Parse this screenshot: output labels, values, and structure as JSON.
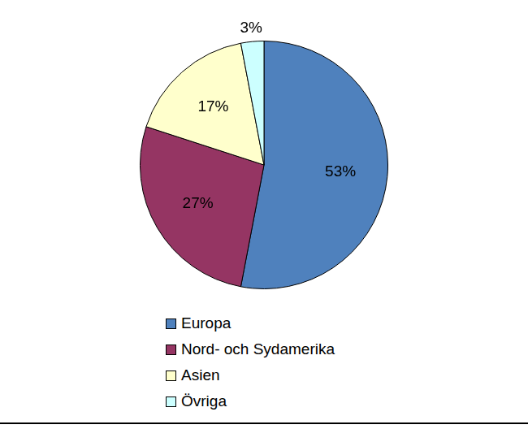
{
  "chart_data": {
    "type": "pie",
    "categories": [
      "Europa",
      "Nord- och Sydamerika",
      "Asien",
      "Övriga"
    ],
    "values": [
      53,
      27,
      17,
      3
    ],
    "value_labels": [
      "53%",
      "27%",
      "17%",
      "3%"
    ],
    "colors": [
      "#4f81bd",
      "#953563",
      "#ffffcc",
      "#ccffff"
    ],
    "data_labels": true,
    "legend": "bottom"
  }
}
